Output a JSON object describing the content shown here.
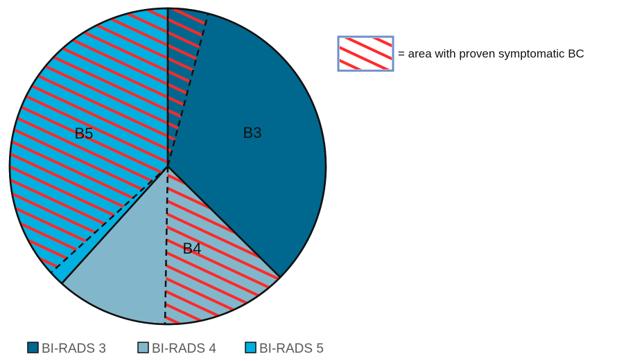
{
  "chart_data": {
    "type": "pie",
    "slices": [
      {
        "name": "BI-RADS 3",
        "short_label": "B3",
        "value": 37.4,
        "color": "#00688f",
        "proven_symptomatic_share": 0.11
      },
      {
        "name": "BI-RADS 4",
        "short_label": "B4",
        "value": 24.3,
        "color": "#82b7cb",
        "proven_symptomatic_share": 0.53
      },
      {
        "name": "BI-RADS 5",
        "short_label": "B5",
        "value": 38.3,
        "color": "#00b0e0",
        "proven_symptomatic_share": 0.96
      }
    ],
    "start_angle_deg": 0,
    "direction": "clockwise",
    "legend": {
      "position": "bottom-left",
      "entries": [
        "BI-RADS 3",
        "BI-RADS 4",
        "BI-RADS 5"
      ]
    },
    "hatch_key": {
      "position": "top-right",
      "text": "= area with proven symptomatic BC",
      "hatch_color": "#ff2a2a",
      "box_border_color": "#6f8fc8"
    }
  }
}
